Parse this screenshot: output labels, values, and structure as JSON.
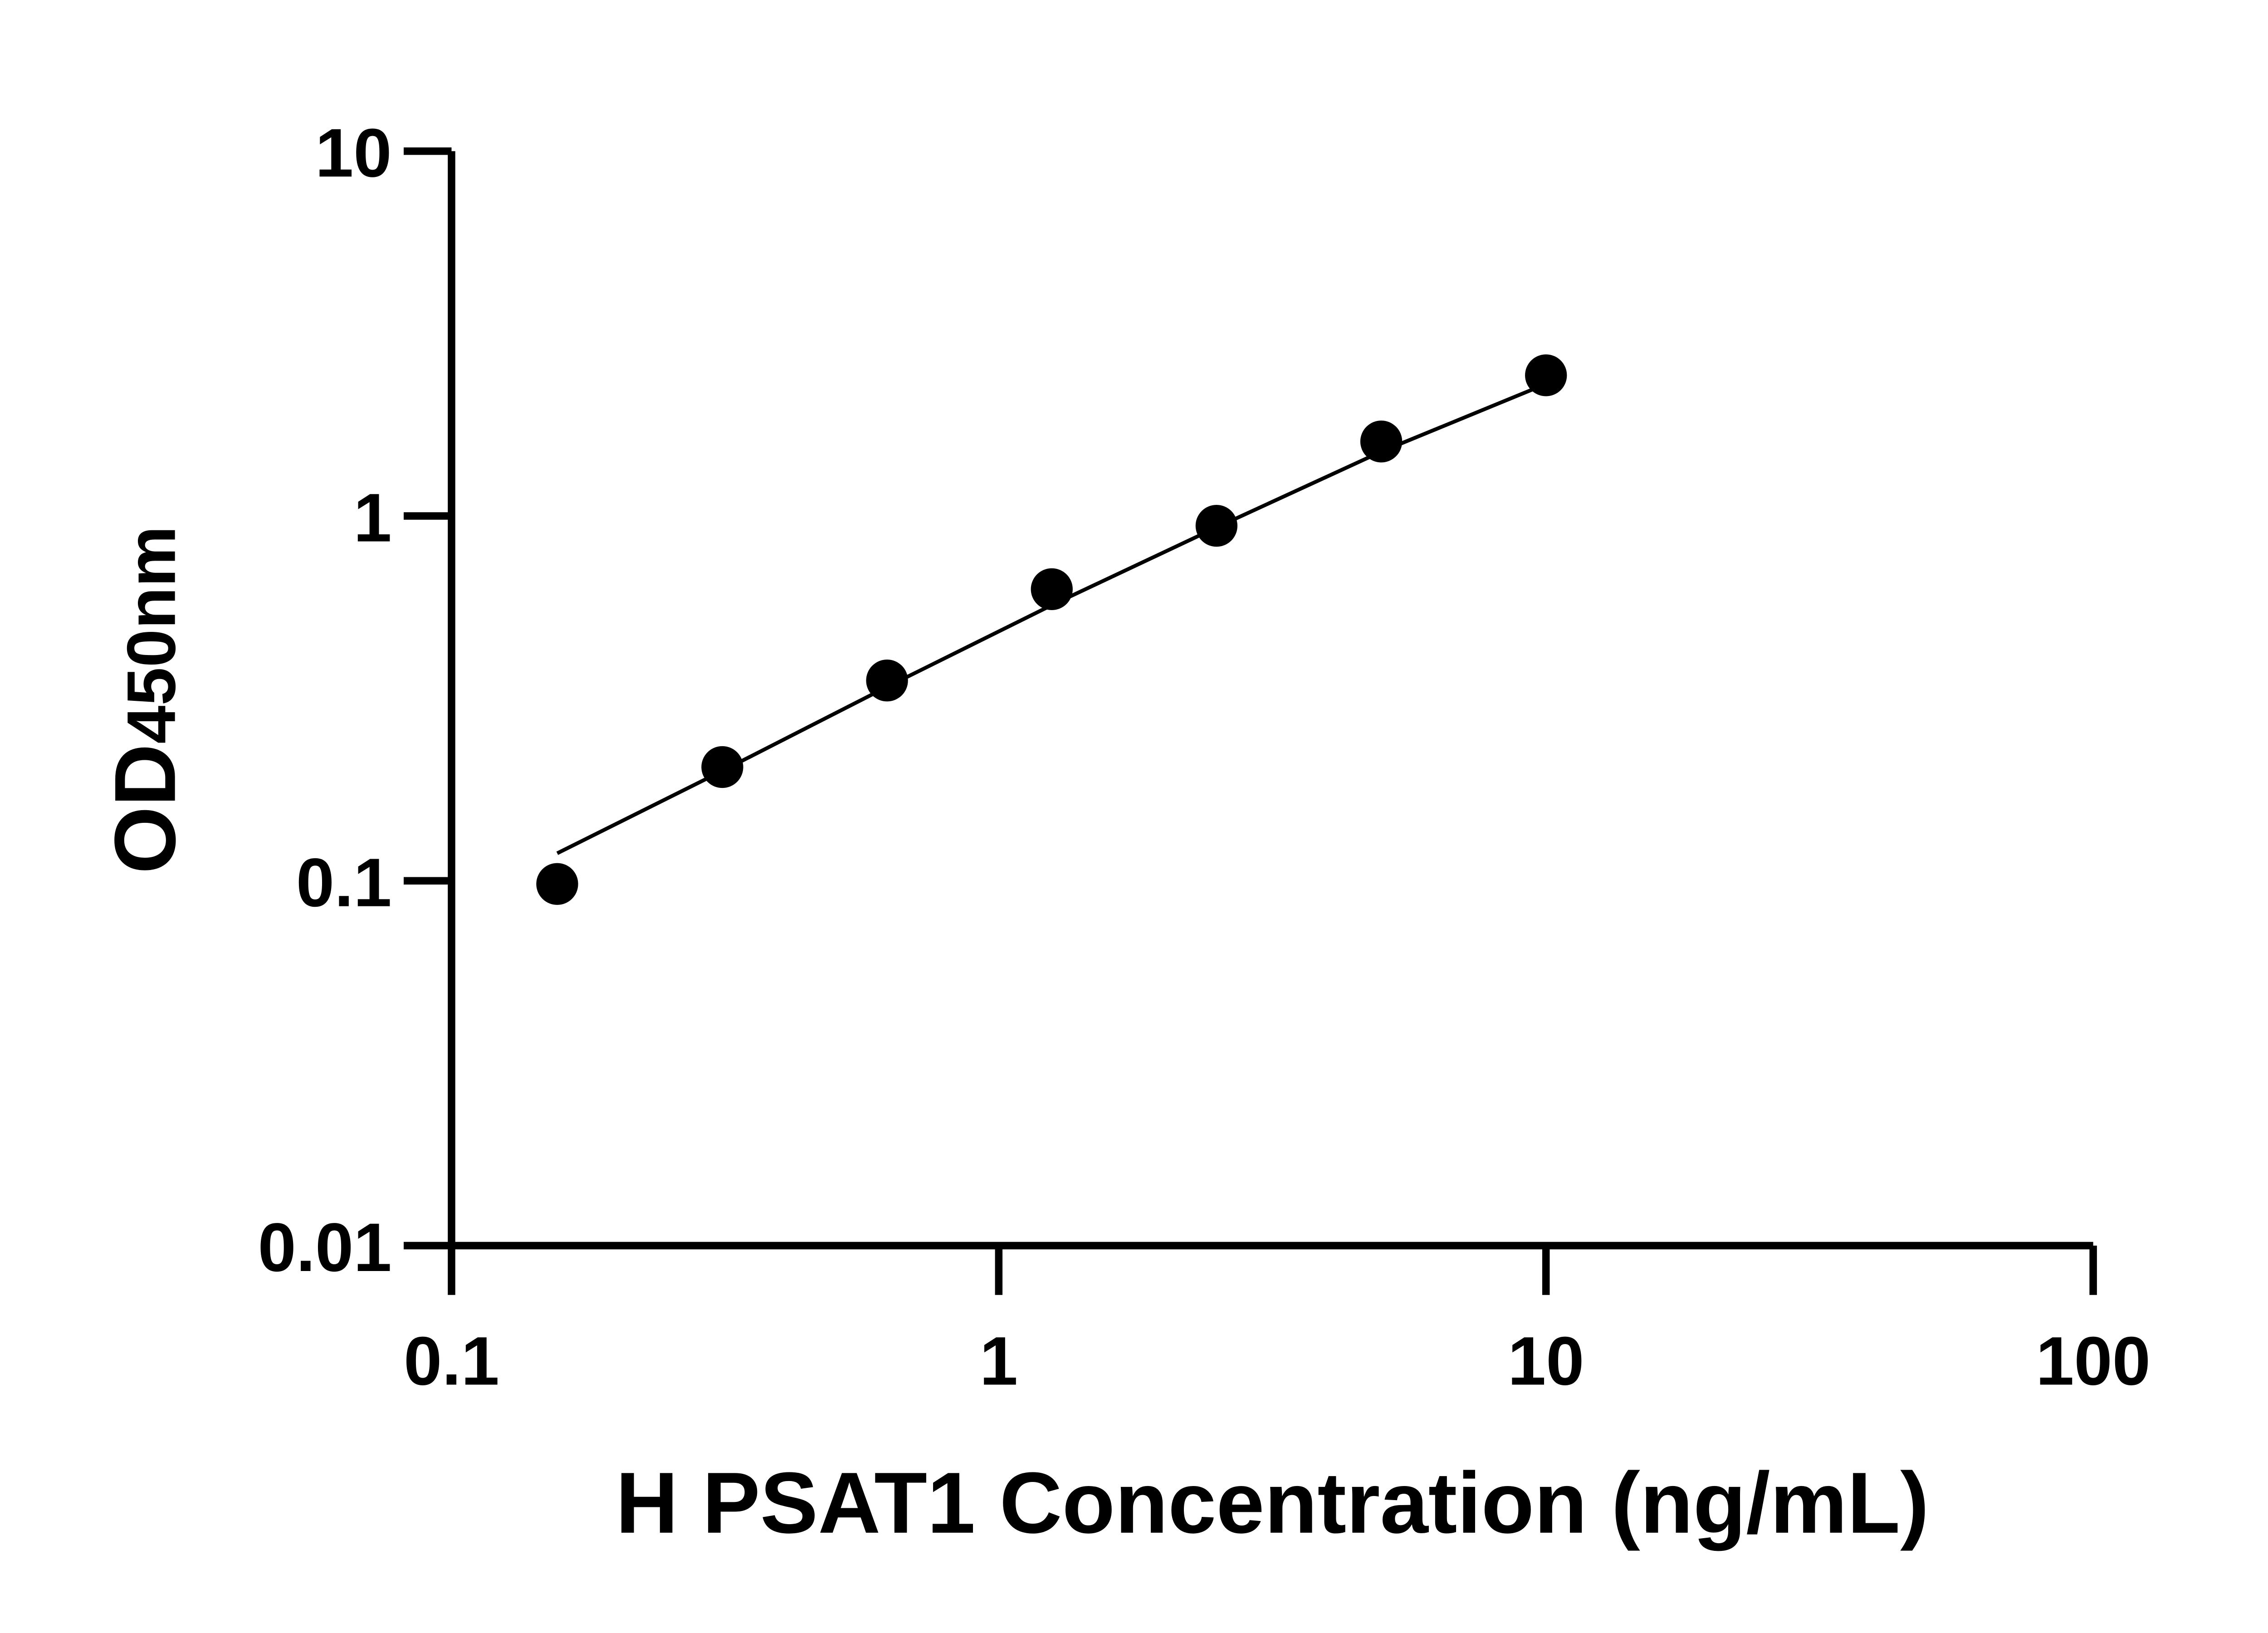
{
  "chart_data": {
    "type": "scatter",
    "title": "",
    "xlabel": "H PSAT1 Concentration (ng/mL)",
    "ylabel_main": "OD",
    "ylabel_sub": "450nm",
    "x_scale": "log",
    "y_scale": "log",
    "xlim": [
      0.1,
      100
    ],
    "ylim": [
      0.01,
      10
    ],
    "x_ticks": [
      "0.1",
      "1",
      "10",
      "100"
    ],
    "y_ticks": [
      "0.01",
      "0.1",
      "1",
      "10"
    ],
    "grid": false,
    "legend": "none",
    "point_color": "#000000",
    "series": [
      {
        "x": [
          0.156,
          0.3125,
          0.625,
          1.25,
          2.5,
          5,
          10
        ],
        "y": [
          0.098,
          0.205,
          0.354,
          0.63,
          0.94,
          1.6,
          2.43
        ]
      }
    ],
    "fit_curve": {
      "x": [
        0.156,
        0.3125,
        0.625,
        1.25,
        2.5,
        5,
        10
      ],
      "y": [
        0.119,
        0.2,
        0.34,
        0.57,
        0.93,
        1.5,
        2.3
      ]
    }
  }
}
